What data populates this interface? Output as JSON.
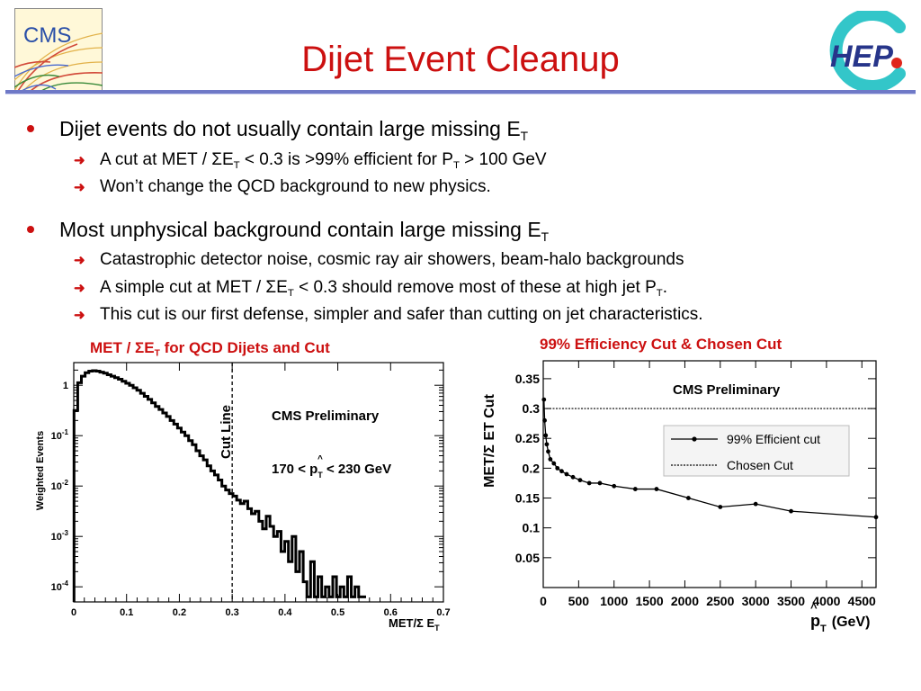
{
  "slide": {
    "title": "Dijet Event Cleanup",
    "logo_left_text": "CMS",
    "logo_right_text": "HEP"
  },
  "bullets": [
    {
      "pre": "Dijet events do not usually contain large missing E",
      "sub": "T",
      "post": "",
      "children": [
        {
          "parts": [
            "A cut at MET / ΣE",
            "T",
            " < 0.3 is >99% efficient for P",
            "T",
            " > 100 GeV"
          ]
        },
        {
          "parts": [
            "Won’t change the QCD background to new physics."
          ]
        }
      ]
    },
    {
      "pre": "Most unphysical background contain large missing E",
      "sub": "T",
      "post": "",
      "children": [
        {
          "parts": [
            "Catastrophic detector noise, cosmic ray air showers, beam-halo backgrounds"
          ]
        },
        {
          "parts": [
            "A simple cut at MET / ΣE",
            "T",
            " < 0.3 should remove most of these at high jet P",
            "T",
            "."
          ]
        },
        {
          "parts": [
            "This cut is our first defense, simpler and safer than cutting on jet characteristics."
          ]
        }
      ]
    }
  ],
  "left_plot": {
    "caption_pre": "MET / ΣE",
    "caption_sub": "T",
    "caption_post": " for QCD Dijets and Cut",
    "cut_label": "Cut Line",
    "prelim": "CMS Preliminary",
    "range_pre": "170 < ",
    "range_var": "p",
    "range_hat": "^",
    "range_sub": "T",
    "range_post": " < 230 GeV",
    "ylabel": "Weighted Events",
    "xlabel": "MET/Σ E",
    "xlabel_sub": "T"
  },
  "right_plot": {
    "caption": "99% Efficiency Cut & Chosen Cut",
    "prelim": "CMS Preliminary",
    "ylabel": "MET/Σ  ET Cut",
    "xlabel_hat": "^",
    "xlabel_var": "p",
    "xlabel_sub": "T",
    "xlabel_post": "(GeV)"
  },
  "chart_data": [
    {
      "type": "line",
      "subtype": "histogram",
      "y_scale": "log",
      "xlim": [
        0,
        0.7
      ],
      "ylim_log10": [
        -4.3,
        0.45
      ],
      "x_ticks": [
        "0",
        "0.1",
        "0.2",
        "0.3",
        "0.4",
        "0.5",
        "0.6",
        "0.7"
      ],
      "y_ticks": [
        {
          "base": "1",
          "exp": "",
          "log": 0
        },
        {
          "base": "10",
          "exp": "-1",
          "log": -1
        },
        {
          "base": "10",
          "exp": "-2",
          "log": -2
        },
        {
          "base": "10",
          "exp": "-3",
          "log": -3
        },
        {
          "base": "10",
          "exp": "-4",
          "log": -4
        }
      ],
      "cut_x": 0.3,
      "bin_width": 0.007,
      "x": [
        0.004,
        0.011,
        0.018,
        0.025,
        0.032,
        0.039,
        0.046,
        0.053,
        0.06,
        0.067,
        0.074,
        0.081,
        0.088,
        0.095,
        0.102,
        0.109,
        0.116,
        0.123,
        0.13,
        0.137,
        0.144,
        0.151,
        0.158,
        0.165,
        0.172,
        0.179,
        0.186,
        0.193,
        0.2,
        0.207,
        0.214,
        0.221,
        0.228,
        0.235,
        0.242,
        0.249,
        0.256,
        0.263,
        0.27,
        0.277,
        0.284,
        0.291,
        0.298,
        0.305,
        0.312,
        0.319,
        0.326,
        0.333,
        0.34,
        0.347,
        0.354,
        0.361,
        0.368,
        0.375,
        0.382,
        0.389,
        0.396,
        0.403,
        0.41,
        0.417,
        0.424,
        0.431,
        0.438,
        0.445,
        0.452,
        0.459,
        0.466,
        0.473,
        0.48,
        0.487,
        0.494,
        0.501,
        0.508,
        0.515,
        0.522,
        0.529,
        0.536,
        0.543,
        0.55
      ],
      "log10_y": [
        -0.5,
        0.05,
        0.18,
        0.25,
        0.28,
        0.29,
        0.28,
        0.26,
        0.24,
        0.21,
        0.18,
        0.15,
        0.12,
        0.08,
        0.04,
        0.0,
        -0.05,
        -0.1,
        -0.16,
        -0.22,
        -0.28,
        -0.35,
        -0.42,
        -0.48,
        -0.55,
        -0.62,
        -0.7,
        -0.77,
        -0.85,
        -0.93,
        -1.0,
        -1.1,
        -1.18,
        -1.3,
        -1.4,
        -1.48,
        -1.6,
        -1.7,
        -1.78,
        -1.88,
        -2.0,
        -2.08,
        -2.15,
        -2.2,
        -2.28,
        -2.35,
        -2.3,
        -2.45,
        -2.55,
        -2.5,
        -2.7,
        -2.85,
        -2.6,
        -2.8,
        -3.0,
        -2.9,
        -3.3,
        -3.1,
        -3.5,
        -3.0,
        -3.7,
        -3.3,
        -3.9,
        -4.2,
        -3.5,
        -4.2,
        -3.8,
        -4.2,
        -4.0,
        -4.2,
        -3.8,
        -4.2,
        -4.0,
        -4.2,
        -3.8,
        -4.2,
        -4.0,
        -4.2,
        -4.2
      ]
    },
    {
      "type": "line",
      "xlim": [
        0,
        4700
      ],
      "ylim": [
        0,
        0.38
      ],
      "x_ticks": [
        0,
        500,
        1000,
        1500,
        2000,
        2500,
        3000,
        3500,
        4000,
        4500
      ],
      "y_ticks": [
        0.05,
        0.1,
        0.15,
        0.2,
        0.25,
        0.3,
        0.35
      ],
      "series": [
        {
          "name": "99% Efficient cut",
          "x": [
            10,
            20,
            35,
            50,
            70,
            100,
            150,
            200,
            260,
            330,
            420,
            520,
            650,
            800,
            1000,
            1300,
            1600,
            2050,
            2500,
            3000,
            3500,
            4700
          ],
          "y": [
            0.315,
            0.28,
            0.255,
            0.24,
            0.228,
            0.215,
            0.208,
            0.2,
            0.195,
            0.19,
            0.185,
            0.18,
            0.175,
            0.175,
            0.17,
            0.165,
            0.165,
            0.15,
            0.135,
            0.14,
            0.128,
            0.118
          ]
        },
        {
          "name": "Chosen Cut",
          "x": [
            0,
            4700
          ],
          "y": [
            0.3,
            0.3
          ]
        }
      ]
    }
  ]
}
